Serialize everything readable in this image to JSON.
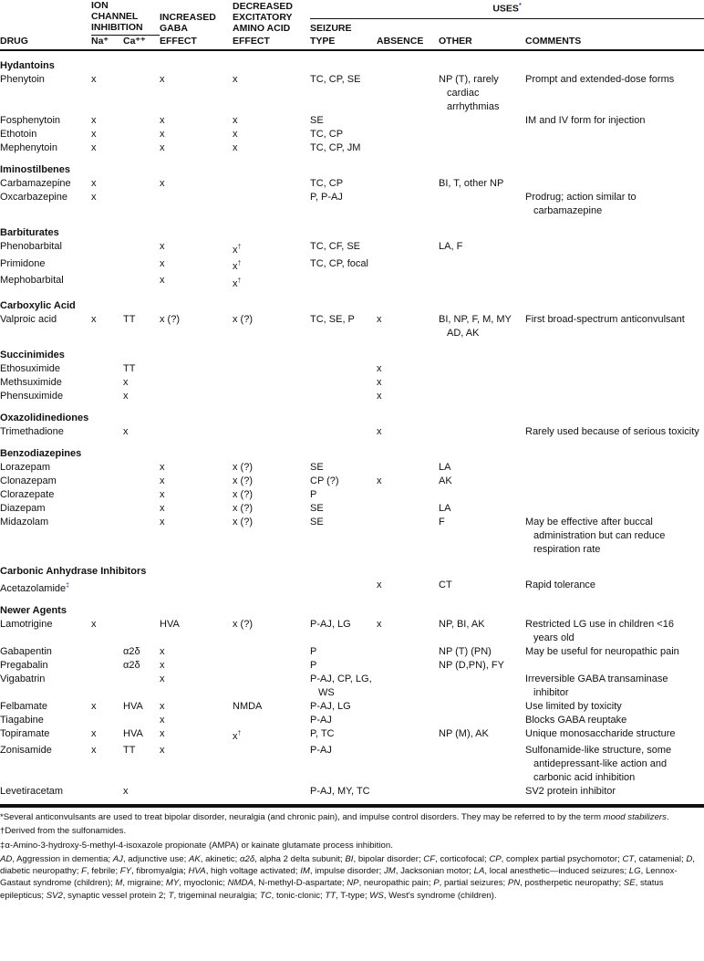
{
  "headers": {
    "ion_channel": "ION CHANNEL INHIBITION",
    "ion_channel_l1": "ION",
    "ion_channel_l2": "CHANNEL",
    "ion_channel_l3": "INHIBITION",
    "gaba_l1": "INCREASED",
    "gaba_l2": "GABA",
    "gaba_l3": "EFFECT",
    "eaa_l1": "DECREASED",
    "eaa_l2": "EXCITATORY",
    "eaa_l3": "AMINO ACID",
    "eaa_l4": "EFFECT",
    "uses": "USES",
    "uses_mark": "*",
    "drug": "DRUG",
    "na": "Na⁺",
    "ca": "Ca⁺⁺",
    "seizure_l1": "SEIZURE",
    "seizure_l2": "TYPE",
    "absence": "ABSENCE",
    "other": "OTHER",
    "comments": "COMMENTS"
  },
  "groups": [
    {
      "name": "Hydantoins",
      "rows": [
        [
          "Phenytoin",
          "x",
          "",
          "x",
          "x",
          "TC, CP, SE",
          "",
          "NP (T), rarely cardiac arrhythmias",
          "Prompt and extended-dose forms"
        ],
        [
          "Fosphenytoin",
          "x",
          "",
          "x",
          "x",
          "SE",
          "",
          "",
          "IM and IV form for injection"
        ],
        [
          "Ethotoin",
          "x",
          "",
          "x",
          "x",
          "TC, CP",
          "",
          "",
          ""
        ],
        [
          "Mephenytoin",
          "x",
          "",
          "x",
          "x",
          "TC, CP, JM",
          "",
          "",
          ""
        ]
      ]
    },
    {
      "name": "Iminostilbenes",
      "rows": [
        [
          "Carbamazepine",
          "x",
          "",
          "x",
          "",
          "TC, CP",
          "",
          "BI, T, other NP",
          ""
        ],
        [
          "Oxcarbazepine",
          "x",
          "",
          "",
          "",
          "P, P-AJ",
          "",
          "",
          "Prodrug; action similar to carbamazepine"
        ]
      ]
    },
    {
      "name": "Barbiturates",
      "rows": [
        [
          "Phenobarbital",
          "",
          "",
          "x",
          "x†",
          "TC, CF, SE",
          "",
          "LA, F",
          ""
        ],
        [
          "Primidone",
          "",
          "",
          "x",
          "x†",
          "TC, CP, focal",
          "",
          "",
          ""
        ],
        [
          "Mephobarbital",
          "",
          "",
          "x",
          "x†",
          "",
          "",
          "",
          ""
        ]
      ]
    },
    {
      "name": "Carboxylic Acid",
      "rows": [
        [
          "Valproic acid",
          "x",
          "TT",
          "x (?)",
          "x (?)",
          "TC, SE, P",
          "x",
          "BI, NP, F, M, MY AD, AK",
          "First broad-spectrum anticonvulsant"
        ]
      ]
    },
    {
      "name": "Succinimides",
      "rows": [
        [
          "Ethosuximide",
          "",
          "TT",
          "",
          "",
          "",
          "x",
          "",
          ""
        ],
        [
          "Methsuximide",
          "",
          "x",
          "",
          "",
          "",
          "x",
          "",
          ""
        ],
        [
          "Phensuximide",
          "",
          "x",
          "",
          "",
          "",
          "x",
          "",
          ""
        ]
      ]
    },
    {
      "name": "Oxazolidinediones",
      "rows": [
        [
          "Trimethadione",
          "",
          "x",
          "",
          "",
          "",
          "x",
          "",
          "Rarely used because of serious toxicity"
        ]
      ]
    },
    {
      "name": "Benzodiazepines",
      "rows": [
        [
          "Lorazepam",
          "",
          "",
          "x",
          "x (?)",
          "SE",
          "",
          "LA",
          ""
        ],
        [
          "Clonazepam",
          "",
          "",
          "x",
          "x (?)",
          "CP (?)",
          "x",
          "AK",
          ""
        ],
        [
          "Clorazepate",
          "",
          "",
          "x",
          "x (?)",
          "P",
          "",
          "",
          ""
        ],
        [
          "Diazepam",
          "",
          "",
          "x",
          "x (?)",
          "SE",
          "",
          "LA",
          ""
        ],
        [
          "Midazolam",
          "",
          "",
          "x",
          "x (?)",
          "SE",
          "",
          "F",
          "May be effective after buccal administration but can reduce respiration rate"
        ]
      ]
    },
    {
      "name": "Carbonic Anhydrase Inhibitors",
      "rows": [
        [
          "Acetazolamide‡",
          "",
          "",
          "",
          "",
          "",
          "x",
          "CT",
          "Rapid tolerance"
        ]
      ]
    },
    {
      "name": "Newer Agents",
      "rows": [
        [
          "Lamotrigine",
          "x",
          "",
          "HVA",
          "x (?)",
          "P-AJ, LG",
          "x",
          "NP, BI, AK",
          "Restricted LG use in children <16 years old"
        ],
        [
          "Gabapentin",
          "",
          "α2δ",
          "x",
          "",
          "P",
          "",
          "NP (T) (PN)",
          "May be useful for neuropathic pain"
        ],
        [
          "Pregabalin",
          "",
          "α2δ",
          "x",
          "",
          "P",
          "",
          "NP (D,PN), FY",
          ""
        ],
        [
          "Vigabatrin",
          "",
          "",
          "x",
          "",
          "P-AJ, CP, LG, WS",
          "",
          "",
          "Irreversible GABA transaminase inhibitor"
        ],
        [
          "Felbamate",
          "x",
          "HVA",
          "x",
          "NMDA",
          "P-AJ, LG",
          "",
          "",
          "Use limited by toxicity"
        ],
        [
          "Tiagabine",
          "",
          "",
          "x",
          "",
          "P-AJ",
          "",
          "",
          "Blocks GABA reuptake"
        ],
        [
          "Topiramate",
          "x",
          "HVA",
          "x",
          "x†",
          "P, TC",
          "",
          "NP (M), AK",
          "Unique monosaccharide structure"
        ],
        [
          "Zonisamide",
          "x",
          "TT",
          "x",
          "",
          "P-AJ",
          "",
          "",
          "Sulfonamide-like structure, some antidepressant-like action and carbonic acid inhibition"
        ],
        [
          "Levetiracetam",
          "",
          "x",
          "",
          "",
          "P-AJ, MY, TC",
          "",
          "",
          "SV2 protein inhibitor"
        ]
      ]
    }
  ],
  "footnotes": {
    "star": "*Several anticonvulsants are used to treat bipolar disorder, neuralgia (and chronic pain), and impulse control disorders. They may be referred to by the term ",
    "star_italic": "mood stabilizers",
    "star_end": ".",
    "dagger": "†Derived from the sulfonamides.",
    "ddagger": "‡α-Amino-3-hydroxy-5-methyl-4-isoxazole propionate (AMPA) or kainate glutamate process inhibition.",
    "abbreviations": [
      [
        "AD",
        "Aggression in dementia"
      ],
      [
        "AJ",
        "adjunctive use"
      ],
      [
        "AK",
        "akinetic"
      ],
      [
        "α2δ",
        "alpha 2 delta subunit"
      ],
      [
        "BI",
        "bipolar disorder"
      ],
      [
        "CF",
        "corticofocal"
      ],
      [
        "CP",
        "complex partial psychomotor"
      ],
      [
        "CT",
        "catamenial"
      ],
      [
        "D",
        "diabetic neuropathy"
      ],
      [
        "F",
        "febrile"
      ],
      [
        "FY",
        "fibromyalgia"
      ],
      [
        "HVA",
        "high voltage activated"
      ],
      [
        "IM",
        "impulse disorder"
      ],
      [
        "JM",
        "Jacksonian motor"
      ],
      [
        "LA",
        "local anesthetic—induced seizures"
      ],
      [
        "LG",
        "Lennox-Gastaut syndrome (children)"
      ],
      [
        "M",
        "migraine"
      ],
      [
        "MY",
        "myoclonic"
      ],
      [
        "NMDA",
        "N-methyl-D-aspartate"
      ],
      [
        "NP",
        "neuropathic pain"
      ],
      [
        "P",
        "partial seizures"
      ],
      [
        "PN",
        "postherpetic neuropathy"
      ],
      [
        "SE",
        "status epilepticus"
      ],
      [
        "SV2",
        "synaptic vessel protein 2"
      ],
      [
        "T",
        "trigeminal neuralgia"
      ],
      [
        "TC",
        "tonic-clonic"
      ],
      [
        "TT",
        "T-type"
      ],
      [
        "WS",
        "West's syndrome (children)"
      ]
    ]
  },
  "colors": {
    "text": "#111111",
    "footnote_mark": "#2a3cc0"
  }
}
